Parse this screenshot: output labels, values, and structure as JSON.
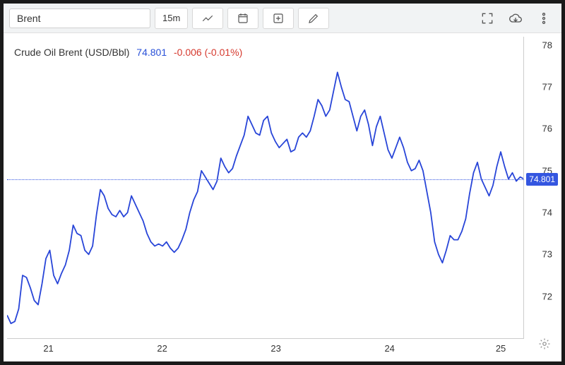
{
  "toolbar": {
    "search_value": "Brent",
    "interval_label": "15m"
  },
  "header": {
    "name": "Crude Oil Brent (USD/Bbl)",
    "price": "74.801",
    "change": "-0.006 (-0.01%)"
  },
  "chart": {
    "type": "line",
    "line_color": "#2845d8",
    "line_width": 1.8,
    "background_color": "#ffffff",
    "current_line_color": "#3456e0",
    "ylim": [
      71,
      78.2
    ],
    "y_ticks": [
      72,
      73,
      74,
      75,
      76,
      77,
      78
    ],
    "x_ticks": [
      {
        "pos": 0.08,
        "label": "21"
      },
      {
        "pos": 0.3,
        "label": "22"
      },
      {
        "pos": 0.52,
        "label": "23"
      },
      {
        "pos": 0.74,
        "label": "24"
      },
      {
        "pos": 0.955,
        "label": "25"
      }
    ],
    "current_value": 74.801,
    "current_label": "74.801",
    "series": [
      71.55,
      71.35,
      71.4,
      71.7,
      72.5,
      72.45,
      72.2,
      71.9,
      71.8,
      72.3,
      72.9,
      73.1,
      72.5,
      72.3,
      72.55,
      72.75,
      73.1,
      73.7,
      73.5,
      73.45,
      73.1,
      73.0,
      73.2,
      73.95,
      74.55,
      74.4,
      74.1,
      73.95,
      73.9,
      74.05,
      73.9,
      74.0,
      74.4,
      74.2,
      74.0,
      73.8,
      73.5,
      73.3,
      73.2,
      73.25,
      73.2,
      73.3,
      73.15,
      73.05,
      73.15,
      73.35,
      73.6,
      74.0,
      74.3,
      74.5,
      75.0,
      74.85,
      74.7,
      74.55,
      74.75,
      75.3,
      75.1,
      74.95,
      75.05,
      75.35,
      75.6,
      75.85,
      76.3,
      76.1,
      75.9,
      75.85,
      76.2,
      76.3,
      75.9,
      75.7,
      75.55,
      75.65,
      75.75,
      75.45,
      75.5,
      75.8,
      75.9,
      75.8,
      75.95,
      76.3,
      76.7,
      76.55,
      76.3,
      76.45,
      76.9,
      77.35,
      77.0,
      76.7,
      76.65,
      76.3,
      75.95,
      76.3,
      76.45,
      76.1,
      75.6,
      76.05,
      76.3,
      75.9,
      75.5,
      75.3,
      75.55,
      75.8,
      75.55,
      75.2,
      75.0,
      75.05,
      75.25,
      75.0,
      74.5,
      74.0,
      73.3,
      73.0,
      72.8,
      73.1,
      73.45,
      73.35,
      73.35,
      73.55,
      73.85,
      74.45,
      74.95,
      75.2,
      74.8,
      74.6,
      74.4,
      74.65,
      75.1,
      75.45,
      75.1,
      74.8,
      74.95,
      74.75,
      74.85,
      74.8
    ]
  }
}
